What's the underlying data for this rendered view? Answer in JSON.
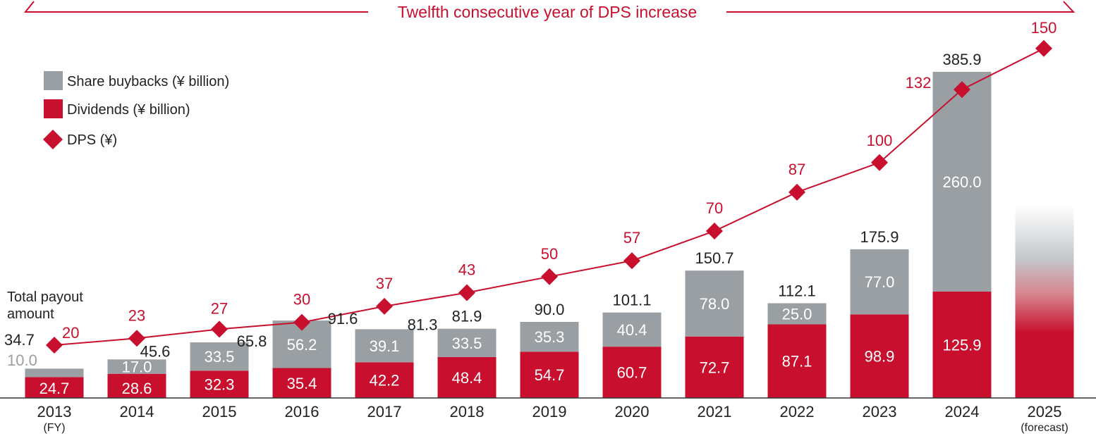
{
  "banner": {
    "text": "Twelfth consecutive year of DPS increase"
  },
  "legend": {
    "items": [
      {
        "label": "Share buybacks (¥ billion)",
        "color": "#9a9fa3",
        "symbol": "square"
      },
      {
        "label": "Dividends (¥ billion)",
        "color": "#c8102e",
        "symbol": "square"
      },
      {
        "label": "DPS (¥)",
        "color": "#c8102e",
        "symbol": "diamond"
      }
    ]
  },
  "total_caption": {
    "line1": "Total payout",
    "line2": "amount"
  },
  "colors": {
    "buyback": "#9a9fa3",
    "dividend": "#c8102e",
    "dps": "#c8102e",
    "axis": "#333333"
  },
  "chart_data": {
    "type": "bar",
    "stacked": true,
    "title": "Twelfth consecutive year of DPS increase",
    "xlabel": "",
    "ylabel": "",
    "categories": [
      "2013",
      "2014",
      "2015",
      "2016",
      "2017",
      "2018",
      "2019",
      "2020",
      "2021",
      "2022",
      "2023",
      "2024",
      "2025"
    ],
    "category_sublabels": [
      "(FY)",
      "",
      "",
      "",
      "",
      "",
      "",
      "",
      "",
      "",
      "",
      "",
      "(forecast)"
    ],
    "series": [
      {
        "name": "Dividends (¥ billion)",
        "type": "bar",
        "values": [
          24.7,
          28.6,
          32.3,
          35.4,
          42.2,
          48.4,
          54.7,
          60.7,
          72.7,
          87.1,
          98.9,
          125.9,
          null
        ],
        "labels": [
          "24.7",
          "28.6",
          "32.3",
          "35.4",
          "42.2",
          "48.4",
          "54.7",
          "60.7",
          "72.7",
          "87.1",
          "98.9",
          "125.9",
          ""
        ]
      },
      {
        "name": "Share buybacks (¥ billion)",
        "type": "bar",
        "values": [
          10.0,
          17.0,
          33.5,
          56.2,
          39.1,
          33.5,
          35.3,
          40.4,
          78.0,
          25.0,
          77.0,
          260.0,
          null
        ],
        "labels": [
          "10.0",
          "17.0",
          "33.5",
          "56.2",
          "39.1",
          "33.5",
          "35.3",
          "40.4",
          "78.0",
          "25.0",
          "77.0",
          "260.0",
          ""
        ]
      },
      {
        "name": "DPS (¥)",
        "type": "line",
        "marker": "diamond",
        "values": [
          20,
          23,
          27,
          30,
          37,
          43,
          50,
          57,
          70,
          87,
          100,
          132,
          150
        ],
        "labels": [
          "20",
          "23",
          "27",
          "30",
          "37",
          "43",
          "50",
          "57",
          "70",
          "87",
          "100",
          "132",
          "150"
        ]
      }
    ],
    "totals": [
      34.7,
      45.6,
      65.8,
      91.6,
      81.3,
      81.9,
      90.0,
      101.1,
      150.7,
      112.1,
      175.9,
      385.9,
      null
    ],
    "total_labels": [
      "34.7",
      "45.6",
      "65.8",
      "91.6",
      "81.3",
      "81.9",
      "90.0",
      "101.1",
      "150.7",
      "112.1",
      "175.9",
      "385.9",
      ""
    ],
    "forecast_bar_note": "2025 bar drawn as gradient placeholder without values",
    "ylim_bars": [
      0,
      400
    ],
    "ylim_dps": [
      0,
      160
    ],
    "grid": false,
    "legend_position": "top-left"
  }
}
